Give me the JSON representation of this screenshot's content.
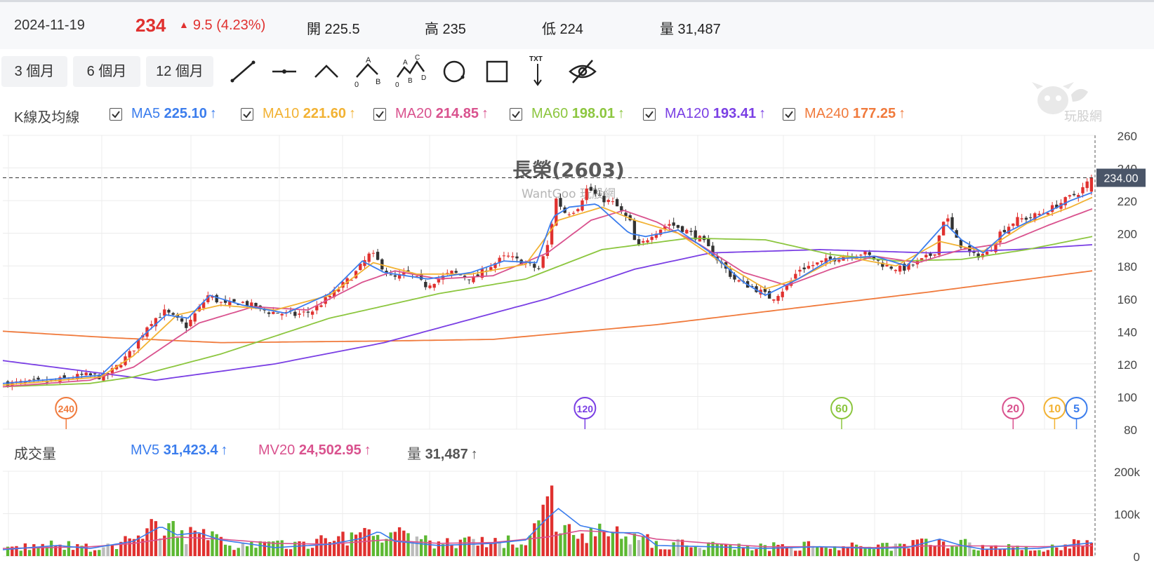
{
  "header": {
    "date": "2024-11-19",
    "price": "234",
    "change": "9.5 (4.23%)",
    "open": "開 225.5",
    "high": "高 235",
    "low": "低 224",
    "volume": "量 31,487"
  },
  "toolbar": {
    "range_buttons": [
      "3 個月",
      "6 個月",
      "12 個月"
    ],
    "tools": [
      "line-tool-icon",
      "horizontal-line-tool-icon",
      "angle-tool-icon",
      "abc-wave-tool-icon",
      "abcd-wave-tool-icon",
      "circle-tool-icon",
      "rectangle-tool-icon",
      "text-arrow-tool-icon",
      "hide-drawings-icon"
    ],
    "wave_labels": {
      "a": "A",
      "b": "B",
      "c": "C",
      "d": "D",
      "zero": "0",
      "txt": "TXT"
    }
  },
  "ma_legend": {
    "title": "K線及均線",
    "items": [
      {
        "name": "MA5",
        "value": "225.10",
        "color": "#3b7ded"
      },
      {
        "name": "MA10",
        "value": "221.60",
        "color": "#f2b233"
      },
      {
        "name": "MA20",
        "value": "214.85",
        "color": "#d9528e"
      },
      {
        "name": "MA60",
        "value": "198.01",
        "color": "#8cc63f"
      },
      {
        "name": "MA120",
        "value": "193.41",
        "color": "#7a3fe4"
      },
      {
        "name": "MA240",
        "value": "177.25",
        "color": "#f07a3c"
      }
    ],
    "arrow": "↑"
  },
  "logo_text": "玩股網",
  "chart_data": {
    "type": "candlestick",
    "title": "長榮(2603)",
    "subtitle": "WantGoo 玩股網",
    "price_axis": {
      "ticks": [
        80,
        100,
        120,
        140,
        160,
        180,
        200,
        220,
        240,
        260
      ],
      "ylim": [
        80,
        260
      ]
    },
    "current_price_label": "234.00",
    "current_price": 234,
    "colors": {
      "up": "#e0312f",
      "down": "#333333",
      "volume_up": "#e0312f",
      "volume_down": "#5cb832",
      "volume_flat": "#bbbbbb",
      "grid": "#ececec"
    },
    "ma_markers": [
      {
        "label": "240",
        "color": "#f07a3c",
        "position": 0.058
      },
      {
        "label": "120",
        "color": "#7a3fe4",
        "position": 0.533
      },
      {
        "label": "60",
        "color": "#8cc63f",
        "position": 0.768
      },
      {
        "label": "20",
        "color": "#d9528e",
        "position": 0.925
      },
      {
        "label": "10",
        "color": "#f2b233",
        "position": 0.963
      },
      {
        "label": "5",
        "color": "#3b7ded",
        "position": 0.983
      }
    ],
    "close_keypoints": [
      [
        0,
        108
      ],
      [
        0.04,
        109
      ],
      [
        0.07,
        113
      ],
      [
        0.09,
        112
      ],
      [
        0.1,
        118
      ],
      [
        0.115,
        128
      ],
      [
        0.13,
        145
      ],
      [
        0.145,
        152
      ],
      [
        0.165,
        143
      ],
      [
        0.185,
        162
      ],
      [
        0.2,
        156
      ],
      [
        0.215,
        158
      ],
      [
        0.24,
        152
      ],
      [
        0.265,
        150
      ],
      [
        0.28,
        152
      ],
      [
        0.3,
        163
      ],
      [
        0.32,
        175
      ],
      [
        0.335,
        188
      ],
      [
        0.345,
        180
      ],
      [
        0.355,
        172
      ],
      [
        0.37,
        176
      ],
      [
        0.385,
        168
      ],
      [
        0.41,
        176
      ],
      [
        0.43,
        172
      ],
      [
        0.445,
        180
      ],
      [
        0.46,
        186
      ],
      [
        0.475,
        182
      ],
      [
        0.49,
        178
      ],
      [
        0.5,
        196
      ],
      [
        0.505,
        222
      ],
      [
        0.515,
        212
      ],
      [
        0.525,
        215
      ],
      [
        0.535,
        228
      ],
      [
        0.545,
        222
      ],
      [
        0.56,
        218
      ],
      [
        0.575,
        206
      ],
      [
        0.58,
        190
      ],
      [
        0.595,
        200
      ],
      [
        0.61,
        206
      ],
      [
        0.625,
        202
      ],
      [
        0.64,
        196
      ],
      [
        0.655,
        184
      ],
      [
        0.67,
        172
      ],
      [
        0.69,
        166
      ],
      [
        0.705,
        160
      ],
      [
        0.72,
        168
      ],
      [
        0.73,
        178
      ],
      [
        0.75,
        182
      ],
      [
        0.77,
        186
      ],
      [
        0.79,
        188
      ],
      [
        0.81,
        180
      ],
      [
        0.825,
        178
      ],
      [
        0.84,
        182
      ],
      [
        0.855,
        188
      ],
      [
        0.865,
        212
      ],
      [
        0.875,
        196
      ],
      [
        0.89,
        186
      ],
      [
        0.905,
        188
      ],
      [
        0.915,
        200
      ],
      [
        0.93,
        208
      ],
      [
        0.945,
        210
      ],
      [
        0.96,
        214
      ],
      [
        0.975,
        220
      ],
      [
        0.99,
        226
      ],
      [
        1,
        234
      ]
    ],
    "ma_lines": [
      {
        "name": "MA240",
        "keypoints": [
          [
            0,
            140
          ],
          [
            0.1,
            136
          ],
          [
            0.2,
            133
          ],
          [
            0.35,
            134
          ],
          [
            0.45,
            135
          ],
          [
            0.6,
            144
          ],
          [
            0.75,
            156
          ],
          [
            0.85,
            164
          ],
          [
            1,
            177
          ]
        ]
      },
      {
        "name": "MA120",
        "keypoints": [
          [
            0,
            122
          ],
          [
            0.07,
            116
          ],
          [
            0.14,
            110
          ],
          [
            0.25,
            120
          ],
          [
            0.35,
            133
          ],
          [
            0.5,
            160
          ],
          [
            0.58,
            178
          ],
          [
            0.65,
            188
          ],
          [
            0.75,
            190
          ],
          [
            0.85,
            188
          ],
          [
            0.93,
            190
          ],
          [
            1,
            193
          ]
        ]
      },
      {
        "name": "MA60",
        "keypoints": [
          [
            0,
            106
          ],
          [
            0.08,
            108
          ],
          [
            0.12,
            112
          ],
          [
            0.2,
            126
          ],
          [
            0.3,
            148
          ],
          [
            0.4,
            163
          ],
          [
            0.48,
            172
          ],
          [
            0.55,
            190
          ],
          [
            0.63,
            197
          ],
          [
            0.7,
            196
          ],
          [
            0.76,
            187
          ],
          [
            0.82,
            183
          ],
          [
            0.88,
            184
          ],
          [
            0.94,
            190
          ],
          [
            1,
            198
          ]
        ]
      },
      {
        "name": "MA20",
        "keypoints": [
          [
            0,
            106
          ],
          [
            0.08,
            110
          ],
          [
            0.12,
            118
          ],
          [
            0.18,
            145
          ],
          [
            0.23,
            155
          ],
          [
            0.28,
            153
          ],
          [
            0.33,
            170
          ],
          [
            0.36,
            177
          ],
          [
            0.4,
            172
          ],
          [
            0.45,
            174
          ],
          [
            0.5,
            188
          ],
          [
            0.54,
            208
          ],
          [
            0.57,
            214
          ],
          [
            0.6,
            207
          ],
          [
            0.64,
            193
          ],
          [
            0.68,
            176
          ],
          [
            0.72,
            168
          ],
          [
            0.76,
            178
          ],
          [
            0.8,
            186
          ],
          [
            0.84,
            182
          ],
          [
            0.88,
            190
          ],
          [
            0.92,
            194
          ],
          [
            0.96,
            205
          ],
          [
            1,
            215
          ]
        ]
      },
      {
        "name": "MA10",
        "keypoints": [
          [
            0,
            107
          ],
          [
            0.09,
            112
          ],
          [
            0.12,
            125
          ],
          [
            0.16,
            150
          ],
          [
            0.2,
            156
          ],
          [
            0.25,
            153
          ],
          [
            0.3,
            162
          ],
          [
            0.34,
            182
          ],
          [
            0.38,
            175
          ],
          [
            0.43,
            175
          ],
          [
            0.48,
            181
          ],
          [
            0.51,
            208
          ],
          [
            0.55,
            216
          ],
          [
            0.58,
            208
          ],
          [
            0.62,
            200
          ],
          [
            0.66,
            182
          ],
          [
            0.7,
            166
          ],
          [
            0.73,
            172
          ],
          [
            0.77,
            186
          ],
          [
            0.82,
            180
          ],
          [
            0.86,
            195
          ],
          [
            0.9,
            189
          ],
          [
            0.94,
            206
          ],
          [
            0.98,
            216
          ],
          [
            1,
            222
          ]
        ]
      },
      {
        "name": "MA5",
        "keypoints": [
          [
            0,
            108
          ],
          [
            0.09,
            113
          ],
          [
            0.12,
            132
          ],
          [
            0.15,
            150
          ],
          [
            0.17,
            148
          ],
          [
            0.19,
            162
          ],
          [
            0.22,
            156
          ],
          [
            0.26,
            151
          ],
          [
            0.3,
            163
          ],
          [
            0.33,
            183
          ],
          [
            0.35,
            176
          ],
          [
            0.39,
            172
          ],
          [
            0.43,
            176
          ],
          [
            0.46,
            183
          ],
          [
            0.49,
            182
          ],
          [
            0.505,
            210
          ],
          [
            0.52,
            216
          ],
          [
            0.545,
            218
          ],
          [
            0.575,
            200
          ],
          [
            0.59,
            198
          ],
          [
            0.62,
            202
          ],
          [
            0.65,
            188
          ],
          [
            0.68,
            170
          ],
          [
            0.7,
            162
          ],
          [
            0.73,
            172
          ],
          [
            0.76,
            184
          ],
          [
            0.8,
            186
          ],
          [
            0.83,
            180
          ],
          [
            0.865,
            206
          ],
          [
            0.88,
            196
          ],
          [
            0.9,
            188
          ],
          [
            0.92,
            200
          ],
          [
            0.95,
            210
          ],
          [
            0.98,
            220
          ],
          [
            1,
            225
          ]
        ]
      }
    ],
    "volume": {
      "title": "成交量",
      "legend": [
        {
          "name": "MV5",
          "value": "31,423.4",
          "color": "#3b7ded"
        },
        {
          "name": "MV20",
          "value": "24,502.95",
          "color": "#d9528e"
        },
        {
          "name": "量",
          "value": "31,487",
          "color": "#555555"
        }
      ],
      "axis_ticks": [
        "200k",
        "100k",
        "0"
      ],
      "ylim": [
        0,
        200000
      ],
      "bar_keypoints": [
        [
          0,
          18000
        ],
        [
          0.04,
          26000
        ],
        [
          0.08,
          20000
        ],
        [
          0.1,
          22000
        ],
        [
          0.12,
          45000
        ],
        [
          0.14,
          72000
        ],
        [
          0.16,
          58000
        ],
        [
          0.18,
          48000
        ],
        [
          0.2,
          30000
        ],
        [
          0.25,
          25000
        ],
        [
          0.3,
          35000
        ],
        [
          0.33,
          60000
        ],
        [
          0.35,
          52000
        ],
        [
          0.37,
          42000
        ],
        [
          0.4,
          30000
        ],
        [
          0.45,
          32000
        ],
        [
          0.48,
          38000
        ],
        [
          0.5,
          120000
        ],
        [
          0.52,
          65000
        ],
        [
          0.55,
          50000
        ],
        [
          0.58,
          45000
        ],
        [
          0.6,
          30000
        ],
        [
          0.65,
          25000
        ],
        [
          0.7,
          22000
        ],
        [
          0.75,
          24000
        ],
        [
          0.8,
          20000
        ],
        [
          0.82,
          26000
        ],
        [
          0.86,
          40000
        ],
        [
          0.88,
          30000
        ],
        [
          0.9,
          20000
        ],
        [
          0.95,
          18000
        ],
        [
          1,
          31487
        ]
      ],
      "mv5_keypoints": [
        [
          0,
          15000
        ],
        [
          0.05,
          25000
        ],
        [
          0.08,
          18000
        ],
        [
          0.12,
          35000
        ],
        [
          0.145,
          70000
        ],
        [
          0.16,
          50000
        ],
        [
          0.18,
          55000
        ],
        [
          0.2,
          38000
        ],
        [
          0.25,
          20000
        ],
        [
          0.3,
          28000
        ],
        [
          0.33,
          42000
        ],
        [
          0.345,
          58000
        ],
        [
          0.36,
          35000
        ],
        [
          0.4,
          25000
        ],
        [
          0.45,
          30000
        ],
        [
          0.48,
          38000
        ],
        [
          0.5,
          90000
        ],
        [
          0.51,
          112000
        ],
        [
          0.53,
          72000
        ],
        [
          0.56,
          55000
        ],
        [
          0.585,
          55000
        ],
        [
          0.6,
          25000
        ],
        [
          0.65,
          22000
        ],
        [
          0.7,
          18000
        ],
        [
          0.75,
          22000
        ],
        [
          0.8,
          18000
        ],
        [
          0.83,
          20000
        ],
        [
          0.86,
          40000
        ],
        [
          0.88,
          25000
        ],
        [
          0.9,
          16000
        ],
        [
          0.95,
          18000
        ],
        [
          1,
          31423
        ]
      ],
      "mv20_keypoints": [
        [
          0,
          18000
        ],
        [
          0.08,
          22000
        ],
        [
          0.12,
          30000
        ],
        [
          0.16,
          45000
        ],
        [
          0.2,
          40000
        ],
        [
          0.25,
          30000
        ],
        [
          0.3,
          28000
        ],
        [
          0.35,
          38000
        ],
        [
          0.4,
          30000
        ],
        [
          0.45,
          32000
        ],
        [
          0.5,
          45000
        ],
        [
          0.53,
          60000
        ],
        [
          0.57,
          55000
        ],
        [
          0.6,
          40000
        ],
        [
          0.65,
          30000
        ],
        [
          0.7,
          22000
        ],
        [
          0.75,
          22000
        ],
        [
          0.8,
          20000
        ],
        [
          0.85,
          24000
        ],
        [
          0.9,
          24000
        ],
        [
          0.95,
          22000
        ],
        [
          1,
          24503
        ]
      ]
    },
    "ncandles": 250
  }
}
